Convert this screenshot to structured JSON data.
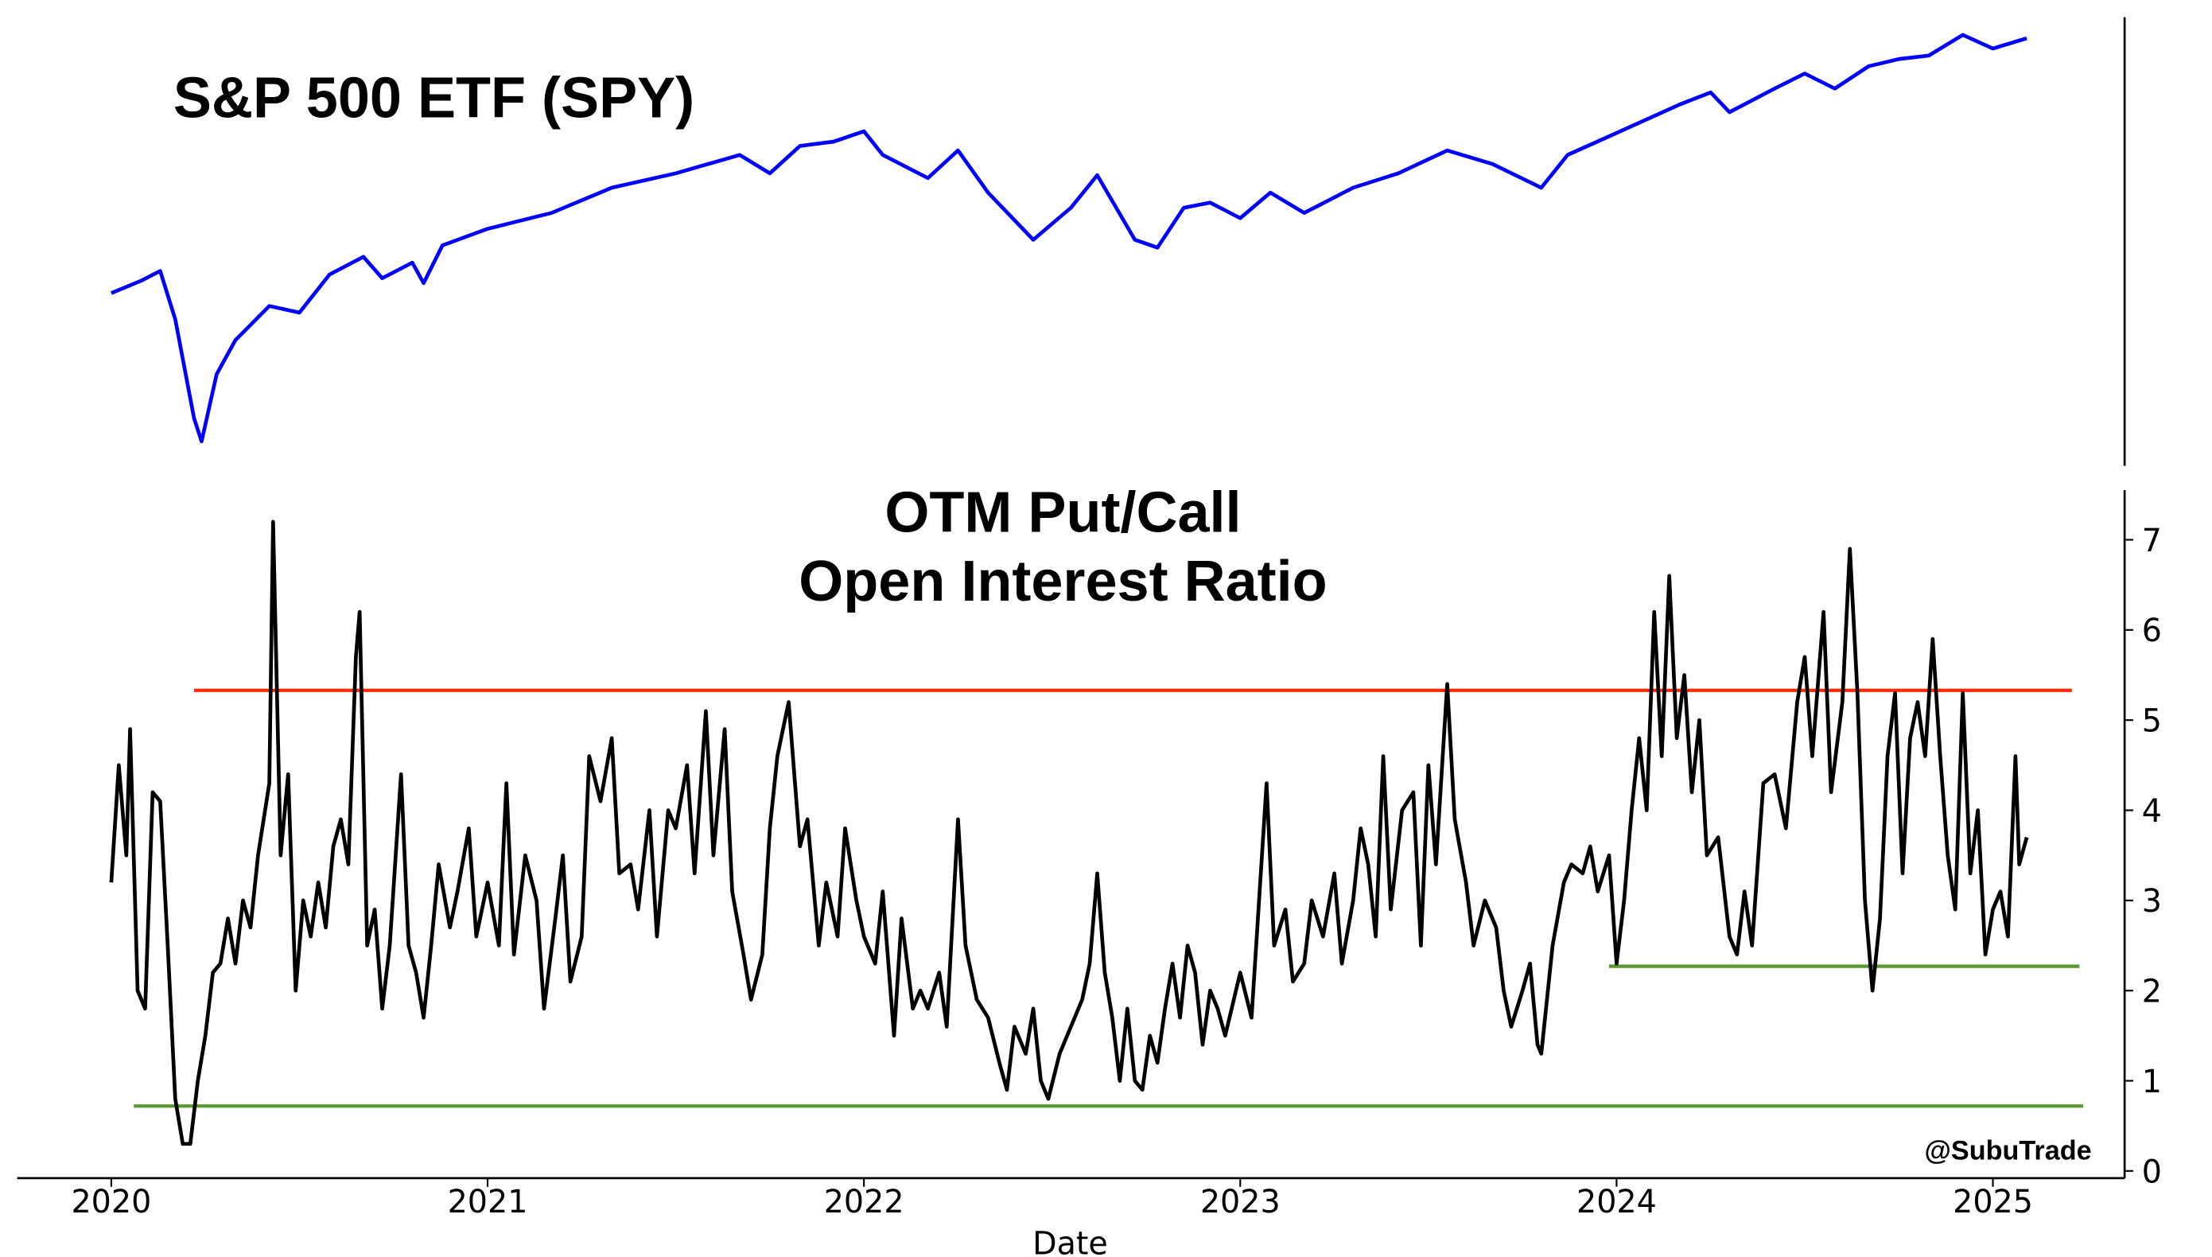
{
  "chart_data": [
    {
      "type": "line",
      "title": "S&P 500 ETF (SPY)",
      "log": true,
      "color": "#0000ff",
      "xlim": [
        2019.75,
        2025.35
      ],
      "ylim": [
        209,
        632
      ],
      "x": [
        2020.0,
        2020.08,
        2020.13,
        2020.17,
        2020.22,
        2020.24,
        2020.28,
        2020.33,
        2020.42,
        2020.5,
        2020.58,
        2020.67,
        2020.72,
        2020.8,
        2020.83,
        2020.88,
        2021.0,
        2021.17,
        2021.33,
        2021.5,
        2021.67,
        2021.75,
        2021.83,
        2021.92,
        2022.0,
        2022.05,
        2022.17,
        2022.25,
        2022.33,
        2022.45,
        2022.55,
        2022.62,
        2022.72,
        2022.78,
        2022.85,
        2022.92,
        2023.0,
        2023.08,
        2023.17,
        2023.3,
        2023.42,
        2023.55,
        2023.67,
        2023.8,
        2023.87,
        2024.0,
        2024.17,
        2024.25,
        2024.3,
        2024.42,
        2024.5,
        2024.58,
        2024.67,
        2024.75,
        2024.83,
        2024.92,
        2025.0,
        2025.09
      ],
      "values": [
        320,
        330,
        338,
        300,
        235,
        222,
        262,
        285,
        310,
        305,
        335,
        350,
        332,
        345,
        328,
        360,
        375,
        390,
        415,
        430,
        450,
        430,
        460,
        465,
        477,
        450,
        425,
        455,
        410,
        365,
        395,
        428,
        365,
        358,
        395,
        400,
        385,
        410,
        390,
        415,
        430,
        455,
        440,
        415,
        450,
        475,
        510,
        525,
        500,
        530,
        550,
        530,
        560,
        570,
        575,
        605,
        585,
        600
      ]
    },
    {
      "type": "line",
      "title": [
        "OTM Put/Call",
        "Open Interest Ratio"
      ],
      "color": "#000000",
      "xlabel": "Date",
      "annotation": "@SubuTrade",
      "xlim": [
        2019.75,
        2025.35
      ],
      "ylim": [
        -0.08,
        7.55
      ],
      "xticks": [
        2020,
        2021,
        2022,
        2023,
        2024,
        2025
      ],
      "yticks": [
        0,
        1,
        2,
        3,
        4,
        5,
        6,
        7
      ],
      "reference_lines": [
        {
          "y": 5.33,
          "x": [
            2020.22,
            2025.21
          ],
          "color": "#ff2a00"
        },
        {
          "y": 0.72,
          "x": [
            2020.06,
            2025.24
          ],
          "color": "#5a9a32"
        },
        {
          "y": 2.27,
          "x": [
            2023.98,
            2025.23
          ],
          "color": "#5a9a32"
        }
      ],
      "x": [
        2020.0,
        2020.02,
        2020.04,
        2020.05,
        2020.07,
        2020.09,
        2020.11,
        2020.13,
        2020.15,
        2020.17,
        2020.19,
        2020.21,
        2020.23,
        2020.25,
        2020.27,
        2020.29,
        2020.31,
        2020.33,
        2020.35,
        2020.37,
        2020.39,
        2020.42,
        2020.43,
        2020.45,
        2020.47,
        2020.49,
        2020.51,
        2020.53,
        2020.55,
        2020.57,
        2020.59,
        2020.61,
        2020.63,
        2020.65,
        2020.66,
        2020.68,
        2020.7,
        2020.72,
        2020.74,
        2020.77,
        2020.79,
        2020.81,
        2020.83,
        2020.85,
        2020.87,
        2020.9,
        2020.92,
        2020.95,
        2020.97,
        2021.0,
        2021.03,
        2021.05,
        2021.07,
        2021.1,
        2021.13,
        2021.15,
        2021.18,
        2021.2,
        2021.22,
        2021.25,
        2021.27,
        2021.3,
        2021.33,
        2021.35,
        2021.38,
        2021.4,
        2021.43,
        2021.45,
        2021.48,
        2021.5,
        2021.53,
        2021.55,
        2021.58,
        2021.6,
        2021.63,
        2021.65,
        2021.68,
        2021.7,
        2021.73,
        2021.75,
        2021.77,
        2021.8,
        2021.83,
        2021.85,
        2021.88,
        2021.9,
        2021.93,
        2021.95,
        2021.98,
        2022.0,
        2022.03,
        2022.05,
        2022.08,
        2022.1,
        2022.13,
        2022.15,
        2022.17,
        2022.2,
        2022.22,
        2022.25,
        2022.27,
        2022.3,
        2022.33,
        2022.36,
        2022.38,
        2022.4,
        2022.43,
        2022.45,
        2022.47,
        2022.49,
        2022.52,
        2022.55,
        2022.58,
        2022.6,
        2022.62,
        2022.64,
        2022.66,
        2022.68,
        2022.7,
        2022.72,
        2022.74,
        2022.76,
        2022.78,
        2022.8,
        2022.82,
        2022.84,
        2022.86,
        2022.88,
        2022.9,
        2022.92,
        2022.94,
        2022.96,
        2023.0,
        2023.03,
        2023.05,
        2023.07,
        2023.09,
        2023.12,
        2023.14,
        2023.17,
        2023.19,
        2023.22,
        2023.25,
        2023.27,
        2023.3,
        2023.32,
        2023.34,
        2023.36,
        2023.38,
        2023.4,
        2023.43,
        2023.46,
        2023.48,
        2023.5,
        2023.52,
        2023.55,
        2023.57,
        2023.6,
        2023.62,
        2023.65,
        2023.68,
        2023.7,
        2023.72,
        2023.75,
        2023.77,
        2023.79,
        2023.8,
        2023.83,
        2023.86,
        2023.88,
        2023.91,
        2023.93,
        2023.95,
        2023.98,
        2024.0,
        2024.02,
        2024.04,
        2024.06,
        2024.08,
        2024.1,
        2024.12,
        2024.14,
        2024.16,
        2024.18,
        2024.2,
        2024.22,
        2024.24,
        2024.27,
        2024.3,
        2024.32,
        2024.34,
        2024.36,
        2024.39,
        2024.42,
        2024.45,
        2024.48,
        2024.5,
        2024.52,
        2024.55,
        2024.57,
        2024.6,
        2024.62,
        2024.64,
        2024.66,
        2024.68,
        2024.7,
        2024.72,
        2024.74,
        2024.76,
        2024.78,
        2024.8,
        2024.82,
        2024.84,
        2024.86,
        2024.88,
        2024.9,
        2024.92,
        2024.94,
        2024.96,
        2024.98,
        2025.0,
        2025.02,
        2025.04,
        2025.06,
        2025.07,
        2025.09
      ],
      "values": [
        3.2,
        4.5,
        3.5,
        4.9,
        2.0,
        1.8,
        4.2,
        4.1,
        2.5,
        0.8,
        0.3,
        0.3,
        1.0,
        1.5,
        2.2,
        2.3,
        2.8,
        2.3,
        3.0,
        2.7,
        3.5,
        4.3,
        7.2,
        3.5,
        4.4,
        2.0,
        3.0,
        2.6,
        3.2,
        2.7,
        3.6,
        3.9,
        3.4,
        5.7,
        6.2,
        2.5,
        2.9,
        1.8,
        2.5,
        4.4,
        2.5,
        2.2,
        1.7,
        2.5,
        3.4,
        2.7,
        3.1,
        3.8,
        2.6,
        3.2,
        2.5,
        4.3,
        2.4,
        3.5,
        3.0,
        1.8,
        2.8,
        3.5,
        2.1,
        2.6,
        4.6,
        4.1,
        4.8,
        3.3,
        3.4,
        2.9,
        4.0,
        2.6,
        4.0,
        3.8,
        4.5,
        3.3,
        5.1,
        3.5,
        4.9,
        3.1,
        2.4,
        1.9,
        2.4,
        3.8,
        4.6,
        5.2,
        3.6,
        3.9,
        2.5,
        3.2,
        2.6,
        3.8,
        3.0,
        2.6,
        2.3,
        3.1,
        1.5,
        2.8,
        1.8,
        2.0,
        1.8,
        2.2,
        1.6,
        3.9,
        2.5,
        1.9,
        1.7,
        1.2,
        0.9,
        1.6,
        1.3,
        1.8,
        1.0,
        0.8,
        1.3,
        1.6,
        1.9,
        2.3,
        3.3,
        2.2,
        1.7,
        1.0,
        1.8,
        1.0,
        0.9,
        1.5,
        1.2,
        1.8,
        2.3,
        1.7,
        2.5,
        2.2,
        1.4,
        2.0,
        1.8,
        1.5,
        2.2,
        1.7,
        3.0,
        4.3,
        2.5,
        2.9,
        2.1,
        2.3,
        3.0,
        2.6,
        3.3,
        2.3,
        3.0,
        3.8,
        3.4,
        2.6,
        4.6,
        2.9,
        4.0,
        4.2,
        2.5,
        4.5,
        3.4,
        5.4,
        3.9,
        3.2,
        2.5,
        3.0,
        2.7,
        2.0,
        1.6,
        2.0,
        2.3,
        1.4,
        1.3,
        2.5,
        3.2,
        3.4,
        3.3,
        3.6,
        3.1,
        3.5,
        2.3,
        3.0,
        4.0,
        4.8,
        4.0,
        6.2,
        4.6,
        6.6,
        4.8,
        5.5,
        4.2,
        5.0,
        3.5,
        3.7,
        2.6,
        2.4,
        3.1,
        2.5,
        4.3,
        4.4,
        3.8,
        5.2,
        5.7,
        4.6,
        6.2,
        4.2,
        5.2,
        6.9,
        5.3,
        3.0,
        2.0,
        2.8,
        4.6,
        5.3,
        3.3,
        4.8,
        5.2,
        4.6,
        5.9,
        4.6,
        3.5,
        2.9,
        5.3,
        3.3,
        4.0,
        2.4,
        2.9,
        3.1,
        2.6,
        4.6,
        3.4,
        3.7
      ]
    }
  ]
}
